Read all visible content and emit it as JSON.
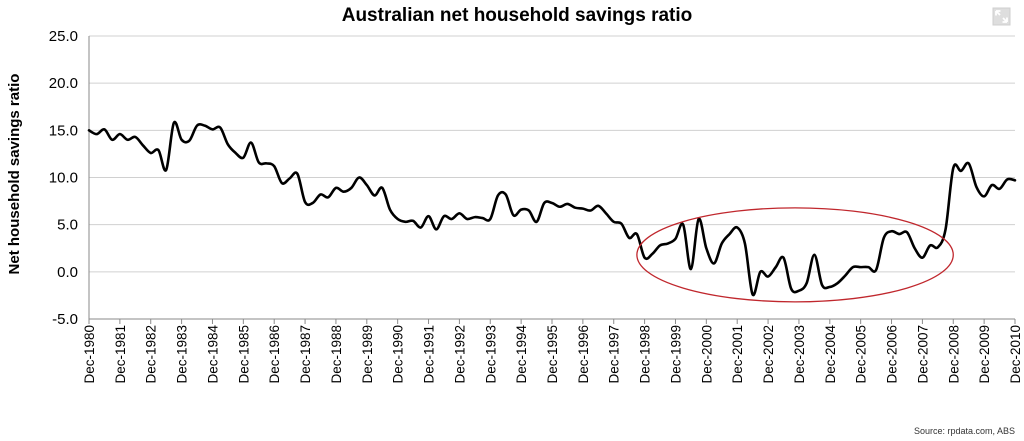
{
  "chart_data": {
    "type": "line",
    "title": "Australian net household savings ratio",
    "ylabel": "Net household savings ratio",
    "xlabel": "",
    "ylim": [
      -5,
      25
    ],
    "yticks": [
      "25.0",
      "20.0",
      "15.0",
      "10.0",
      "5.0",
      "0.0",
      "-5.0"
    ],
    "ytick_values": [
      25,
      20,
      15,
      10,
      5,
      0,
      -5
    ],
    "categories": [
      "Dec-1980",
      "Dec-1981",
      "Dec-1982",
      "Dec-1983",
      "Dec-1984",
      "Dec-1985",
      "Dec-1986",
      "Dec-1987",
      "Dec-1988",
      "Dec-1989",
      "Dec-1990",
      "Dec-1991",
      "Dec-1992",
      "Dec-1993",
      "Dec-1994",
      "Dec-1995",
      "Dec-1996",
      "Dec-1997",
      "Dec-1998",
      "Dec-1999",
      "Dec-2000",
      "Dec-2001",
      "Dec-2002",
      "Dec-2003",
      "Dec-2004",
      "Dec-2005",
      "Dec-2006",
      "Dec-2007",
      "Dec-2008",
      "Dec-2009",
      "Dec-2010"
    ],
    "grid": true,
    "legend": "none",
    "line_color": "#000000",
    "highlight_color": "#c0272d",
    "highlight": {
      "x_start": 1997.75,
      "x_end": 2008.0,
      "y_center": 1.8
    },
    "series": [
      {
        "x": [
          1980.0,
          1980.25,
          1980.5,
          1980.75,
          1981.0,
          1981.25,
          1981.5,
          1981.75,
          1982.0,
          1982.25,
          1982.5,
          1982.75,
          1983.0,
          1983.25,
          1983.5,
          1983.75,
          1984.0,
          1984.25,
          1984.5,
          1984.75,
          1985.0,
          1985.25,
          1985.5,
          1985.75,
          1986.0,
          1986.25,
          1986.5,
          1986.75,
          1987.0,
          1987.25,
          1987.5,
          1987.75,
          1988.0,
          1988.25,
          1988.5,
          1988.75,
          1989.0,
          1989.25,
          1989.5,
          1989.75,
          1990.0,
          1990.25,
          1990.5,
          1990.75,
          1991.0,
          1991.25,
          1991.5,
          1991.75,
          1992.0,
          1992.25,
          1992.5,
          1992.75,
          1993.0,
          1993.25,
          1993.5,
          1993.75,
          1994.0,
          1994.25,
          1994.5,
          1994.75,
          1995.0,
          1995.25,
          1995.5,
          1995.75,
          1996.0,
          1996.25,
          1996.5,
          1996.75,
          1997.0,
          1997.25,
          1997.5,
          1997.75,
          1998.0,
          1998.25,
          1998.5,
          1998.75,
          1999.0,
          1999.25,
          1999.5,
          1999.75,
          2000.0,
          2000.25,
          2000.5,
          2000.75,
          2001.0,
          2001.25,
          2001.5,
          2001.75,
          2002.0,
          2002.25,
          2002.5,
          2002.75,
          2003.0,
          2003.25,
          2003.5,
          2003.75,
          2004.0,
          2004.25,
          2004.5,
          2004.75,
          2005.0,
          2005.25,
          2005.5,
          2005.75,
          2006.0,
          2006.25,
          2006.5,
          2006.75,
          2007.0,
          2007.25,
          2007.5,
          2007.75,
          2008.0,
          2008.25,
          2008.5,
          2008.75,
          2009.0,
          2009.25,
          2009.5,
          2009.75,
          2010.0
        ],
        "values": [
          15.0,
          14.6,
          15.1,
          14.0,
          14.6,
          14.0,
          14.3,
          13.4,
          12.6,
          12.9,
          10.8,
          15.8,
          14.0,
          13.9,
          15.5,
          15.5,
          15.1,
          15.3,
          13.5,
          12.6,
          12.1,
          13.7,
          11.6,
          11.5,
          11.2,
          9.4,
          9.9,
          10.4,
          7.4,
          7.3,
          8.2,
          7.9,
          8.9,
          8.5,
          8.9,
          10.0,
          9.2,
          8.1,
          8.9,
          6.6,
          5.6,
          5.3,
          5.4,
          4.7,
          5.9,
          4.5,
          5.9,
          5.6,
          6.2,
          5.6,
          5.8,
          5.7,
          5.6,
          8.1,
          8.2,
          6.0,
          6.6,
          6.5,
          5.3,
          7.3,
          7.3,
          6.9,
          7.2,
          6.8,
          6.7,
          6.5,
          7.0,
          6.2,
          5.3,
          5.1,
          3.6,
          4.0,
          1.5,
          1.9,
          2.8,
          3.0,
          3.5,
          5.0,
          0.3,
          5.6,
          2.5,
          0.9,
          3.0,
          4.0,
          4.7,
          3.0,
          -2.4,
          0.0,
          -0.5,
          0.5,
          1.5,
          -1.8,
          -2.0,
          -1.2,
          1.8,
          -1.4,
          -1.6,
          -1.2,
          -0.4,
          0.5,
          0.5,
          0.5,
          0.2,
          3.6,
          4.3,
          4.0,
          4.2,
          2.5,
          1.5,
          2.8,
          2.6,
          4.5,
          11.0,
          10.7,
          11.5,
          9.0,
          8.0,
          9.2,
          8.8,
          9.8,
          9.7
        ]
      }
    ],
    "source": "Source: rpdata.com, ABS",
    "expand_icon": "expand-arrows-icon"
  }
}
